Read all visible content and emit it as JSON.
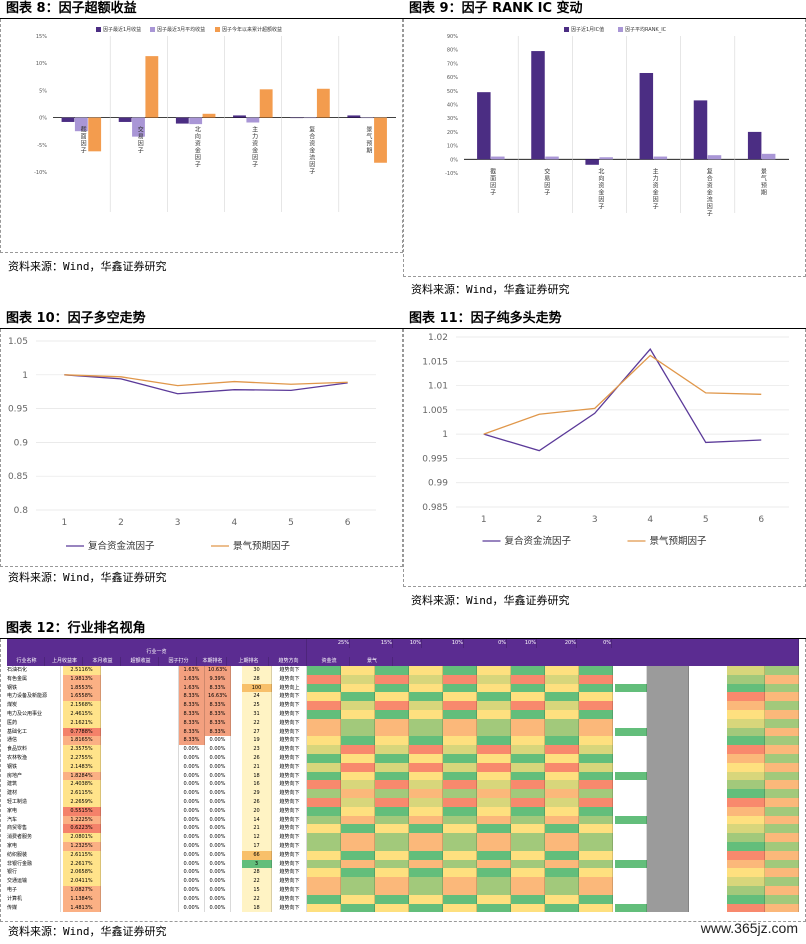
{
  "panels": {
    "p8": {
      "title": "图表 8：因子超额收益",
      "source": "资料来源：Wind，华鑫证券研究"
    },
    "p9": {
      "title": "图表 9：因子 RANK IC 变动",
      "source": "资料来源：Wind，华鑫证券研究"
    },
    "p10": {
      "title": "图表 10：因子多空走势",
      "source": "资料来源：Wind，华鑫证券研究"
    },
    "p11": {
      "title": "图表 11：因子纯多头走势",
      "source": "资料来源：Wind，华鑫证券研究"
    },
    "p12": {
      "title": "图表 12：行业排名视角",
      "source": "资料来源：Wind，华鑫证券研究"
    }
  },
  "watermark": "www.365jz.com",
  "colors": {
    "purple_dark": "#4B2D83",
    "purple_light": "#A996D6",
    "orange": "#F39C4E",
    "line_purple": "#5B3A99",
    "line_orange": "#E0974A",
    "header_purple": "#5B2C91"
  },
  "chart_data": [
    {
      "id": "p8",
      "type": "bar",
      "categories": [
        "截面因子",
        "交易因子",
        "北向资金因子",
        "主力资金因子",
        "复合资金流因子",
        "景气预期"
      ],
      "series": [
        {
          "name": "因子最近1月收益",
          "values": [
            -0.8,
            -0.8,
            -1.1,
            0.4,
            0.0,
            0.4
          ]
        },
        {
          "name": "因子最近3月平均收益",
          "values": [
            -2.5,
            -3.5,
            -1.2,
            -0.9,
            0.0,
            0.0
          ]
        },
        {
          "name": "因子今年以来累计超额收益",
          "values": [
            -6.2,
            11.3,
            0.7,
            5.2,
            5.3,
            -8.3
          ]
        }
      ],
      "yticks": [
        "15%",
        "10%",
        "5%",
        "0%",
        "-5%",
        "-10%"
      ],
      "ylim": [
        -10,
        15
      ]
    },
    {
      "id": "p9",
      "type": "bar",
      "categories": [
        "截面因子",
        "交易因子",
        "北向资金因子",
        "主力资金因子",
        "复合资金流因子",
        "景气预期"
      ],
      "series": [
        {
          "name": "因子近1月IC值",
          "values": [
            49,
            79,
            -4,
            63,
            43,
            20
          ]
        },
        {
          "name": "因子平均RANK_IC",
          "values": [
            2,
            2,
            1.5,
            2,
            3,
            4
          ]
        }
      ],
      "yticks": [
        "90%",
        "80%",
        "70%",
        "60%",
        "50%",
        "40%",
        "30%",
        "20%",
        "10%",
        "0%",
        "-10%"
      ],
      "ylim": [
        -10,
        90
      ]
    },
    {
      "id": "p10",
      "type": "line",
      "x": [
        1,
        2,
        3,
        4,
        5,
        6
      ],
      "series": [
        {
          "name": "复合资金流因子",
          "values": [
            1.0,
            0.994,
            0.972,
            0.978,
            0.977,
            0.988
          ]
        },
        {
          "name": "景气预期因子",
          "values": [
            1.0,
            0.997,
            0.984,
            0.99,
            0.986,
            0.989
          ]
        }
      ],
      "yticks": [
        "1.05",
        "1",
        "0.95",
        "0.9",
        "0.85",
        "0.8"
      ],
      "ylim": [
        0.8,
        1.05
      ]
    },
    {
      "id": "p11",
      "type": "line",
      "x": [
        1,
        2,
        3,
        4,
        5,
        6
      ],
      "series": [
        {
          "name": "复合资金流因子",
          "values": [
            1.0,
            0.9966,
            1.0043,
            1.0175,
            0.9983,
            0.9988
          ]
        },
        {
          "name": "景气预期因子",
          "values": [
            1.0,
            1.0041,
            1.0053,
            1.0162,
            1.0085,
            1.0082
          ]
        }
      ],
      "yticks": [
        "1.02",
        "1.015",
        "1.01",
        "1.005",
        "1",
        "0.995",
        "0.99",
        "0.985"
      ],
      "ylim": [
        0.985,
        1.02
      ]
    }
  ],
  "table": {
    "type": "table",
    "group_title": "行业一览",
    "weights": [
      "25%",
      "15%",
      "10%",
      "10%",
      "0%",
      "10%",
      "20%",
      "0%"
    ],
    "headers": [
      "行业名称",
      "上月收益率",
      "本月收益",
      "超额收益",
      "因子打分",
      "本期排名",
      "上期排名",
      "趋势方向",
      "资金流",
      "景气"
    ],
    "rows": [
      {
        "name": "石油石化",
        "ret": "2.5116%",
        "a": "1.63%",
        "b": "10.63%",
        "rank": "30",
        "trend": "趋势向下"
      },
      {
        "name": "有色金属",
        "ret": "1.9813%",
        "a": "1.63%",
        "b": "9.39%",
        "rank": "28",
        "trend": "趋势向下"
      },
      {
        "name": "钢铁",
        "ret": "1.8553%",
        "a": "1.63%",
        "b": "8.33%",
        "rank": "100",
        "trend": "趋势向上"
      },
      {
        "name": "电力设备及新能源",
        "ret": "1.6558%",
        "a": "8.33%",
        "b": "16.63%",
        "rank": "24",
        "trend": "趋势向下"
      },
      {
        "name": "煤炭",
        "ret": "2.1568%",
        "a": "8.33%",
        "b": "8.33%",
        "rank": "25",
        "trend": "趋势向下"
      },
      {
        "name": "电力及公用事业",
        "ret": "2.4615%",
        "a": "8.33%",
        "b": "8.33%",
        "rank": "31",
        "trend": "趋势向下"
      },
      {
        "name": "医药",
        "ret": "2.1621%",
        "a": "8.33%",
        "b": "8.33%",
        "rank": "22",
        "trend": "趋势向下"
      },
      {
        "name": "基础化工",
        "ret": "0.7788%",
        "a": "8.33%",
        "b": "8.33%",
        "rank": "27",
        "trend": "趋势向下"
      },
      {
        "name": "通信",
        "ret": "1.8165%",
        "a": "8.33%",
        "b": "0.00%",
        "rank": "19",
        "trend": "趋势向下"
      },
      {
        "name": "食品饮料",
        "ret": "2.3575%",
        "a": "0.00%",
        "b": "0.00%",
        "rank": "23",
        "trend": "趋势向下"
      },
      {
        "name": "农林牧渔",
        "ret": "2.2755%",
        "a": "0.00%",
        "b": "0.00%",
        "rank": "26",
        "trend": "趋势向下"
      },
      {
        "name": "钢铁",
        "ret": "2.1483%",
        "a": "0.00%",
        "b": "0.00%",
        "rank": "21",
        "trend": "趋势向下"
      },
      {
        "name": "房地产",
        "ret": "1.8284%",
        "a": "0.00%",
        "b": "0.00%",
        "rank": "18",
        "trend": "趋势向下"
      },
      {
        "name": "建筑",
        "ret": "2.4038%",
        "a": "0.00%",
        "b": "0.00%",
        "rank": "16",
        "trend": "趋势向下"
      },
      {
        "name": "建材",
        "ret": "2.6115%",
        "a": "0.00%",
        "b": "0.00%",
        "rank": "29",
        "trend": "趋势向下"
      },
      {
        "name": "轻工制造",
        "ret": "2.2659%",
        "a": "0.00%",
        "b": "0.00%",
        "rank": "26",
        "trend": "趋势向下"
      },
      {
        "name": "家电",
        "ret": "0.5515%",
        "a": "0.00%",
        "b": "0.00%",
        "rank": "20",
        "trend": "趋势向下"
      },
      {
        "name": "汽车",
        "ret": "1.2225%",
        "a": "0.00%",
        "b": "0.00%",
        "rank": "14",
        "trend": "趋势向下"
      },
      {
        "name": "商贸零售",
        "ret": "0.6223%",
        "a": "0.00%",
        "b": "0.00%",
        "rank": "21",
        "trend": "趋势向下"
      },
      {
        "name": "消费者服务",
        "ret": "2.0801%",
        "a": "0.00%",
        "b": "0.00%",
        "rank": "12",
        "trend": "趋势向下"
      },
      {
        "name": "家电",
        "ret": "1.2325%",
        "a": "0.00%",
        "b": "0.00%",
        "rank": "17",
        "trend": "趋势向下"
      },
      {
        "name": "纺织服装",
        "ret": "2.6115%",
        "a": "0.00%",
        "b": "0.00%",
        "rank": "66",
        "trend": "趋势向下"
      },
      {
        "name": "非银行金融",
        "ret": "2.2617%",
        "a": "0.00%",
        "b": "0.00%",
        "rank": "3",
        "trend": "趋势向下"
      },
      {
        "name": "银行",
        "ret": "2.0658%",
        "a": "0.00%",
        "b": "0.00%",
        "rank": "28",
        "trend": "趋势向下"
      },
      {
        "name": "交通运输",
        "ret": "2.0411%",
        "a": "0.00%",
        "b": "0.00%",
        "rank": "22",
        "trend": "趋势向下"
      },
      {
        "name": "电子",
        "ret": "1.0827%",
        "a": "0.00%",
        "b": "0.00%",
        "rank": "15",
        "trend": "趋势向下"
      },
      {
        "name": "计算机",
        "ret": "1.1384%",
        "a": "0.00%",
        "b": "0.00%",
        "rank": "22",
        "trend": "趋势向下"
      },
      {
        "name": "传媒",
        "ret": "1.4813%",
        "a": "0.00%",
        "b": "0.00%",
        "rank": "18",
        "trend": "趋势向下"
      }
    ]
  }
}
